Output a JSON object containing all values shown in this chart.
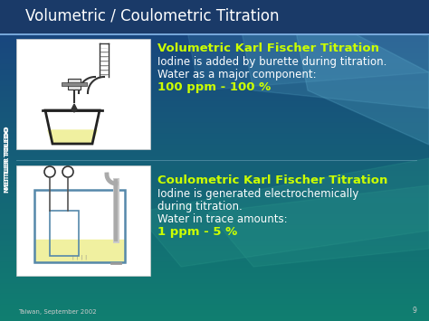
{
  "title": "Volumetric / Coulometric Titration",
  "title_color": "#ffffff",
  "title_fontsize": 12,
  "vol_title": "Volumetric Karl Fischer Titration",
  "vol_title_color": "#ccff00",
  "vol_line1": "Iodine is added by burette during titration.",
  "vol_line2": "Water as a major component:",
  "vol_line3": "100 ppm - 100 %",
  "vol_text_color": "#ffffff",
  "vol_highlight_color": "#ccff00",
  "coul_title": "Coulometric Karl Fischer Titration",
  "coul_title_color": "#ccff00",
  "coul_line1": "Iodine is generated electrochemically",
  "coul_line2": "during titration.",
  "coul_line3": "Water in trace amounts:",
  "coul_line4": "1 ppm - 5 %",
  "coul_text_color": "#ffffff",
  "coul_highlight_color": "#ccff00",
  "footer_text": "Taiwan, September 2002",
  "footer_color": "#cccccc",
  "page_number": "9",
  "mettler_text": "METTLER TOLEDO",
  "mettler_color": "#ffffff",
  "text_fontsize": 8.5,
  "highlight_fontsize": 9.5,
  "title_fontsize2": 9.5
}
